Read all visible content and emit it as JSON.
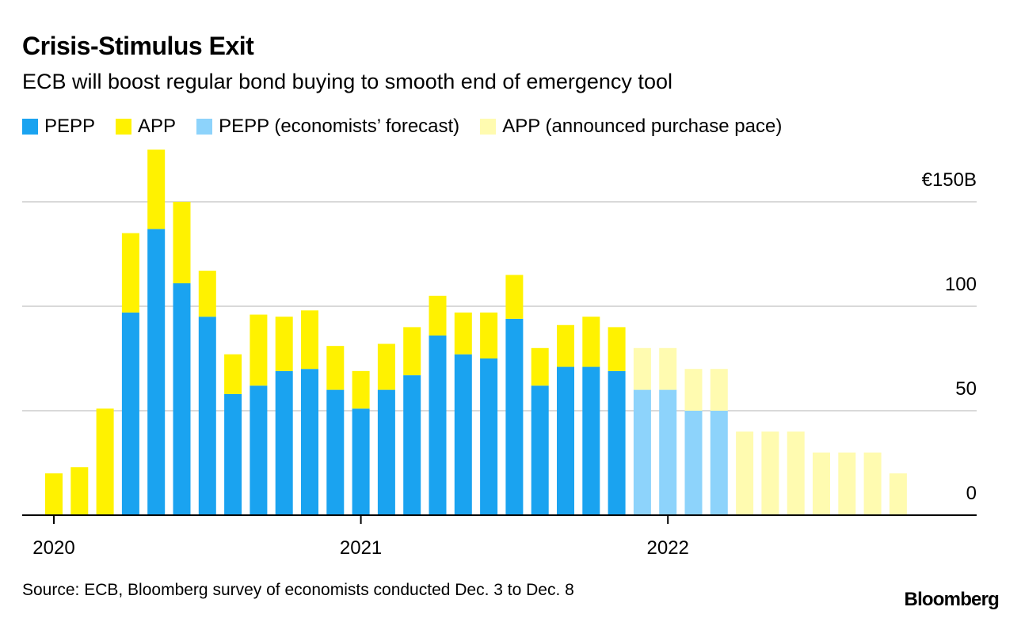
{
  "chart_data": {
    "type": "bar",
    "stacked": true,
    "title": "Crisis-Stimulus Exit",
    "subtitle": "ECB will boost regular bond buying to smooth end of emergency tool",
    "y_unit": "€B",
    "ylim": [
      0,
      150
    ],
    "y_ticks": [
      {
        "value": 0,
        "label": "0"
      },
      {
        "value": 50,
        "label": "50"
      },
      {
        "value": 100,
        "label": "100"
      },
      {
        "value": 150,
        "label": "€150B"
      }
    ],
    "x_ticks": [
      {
        "index": 0,
        "label": "2020"
      },
      {
        "index": 12,
        "label": "2021"
      },
      {
        "index": 24,
        "label": "2022"
      }
    ],
    "categories": [
      "Jan 2020",
      "Feb 2020",
      "Mar 2020",
      "Apr 2020",
      "May 2020",
      "Jun 2020",
      "Jul 2020",
      "Aug 2020",
      "Sep 2020",
      "Oct 2020",
      "Nov 2020",
      "Dec 2020",
      "Jan 2021",
      "Feb 2021",
      "Mar 2021",
      "Apr 2021",
      "May 2021",
      "Jun 2021",
      "Jul 2021",
      "Aug 2021",
      "Sep 2021",
      "Oct 2021",
      "Nov 2021",
      "Dec 2021",
      "Jan 2022",
      "Feb 2022",
      "Mar 2022",
      "Apr 2022",
      "May 2022",
      "Jun 2022",
      "Jul 2022",
      "Aug 2022",
      "Sep 2022",
      "Oct 2022",
      "Nov 2022"
    ],
    "series": [
      {
        "name": "PEPP",
        "color": "#1aa3f0",
        "values": [
          0,
          0,
          0,
          97,
          137,
          111,
          95,
          58,
          62,
          69,
          70,
          60,
          51,
          60,
          67,
          86,
          77,
          75,
          94,
          62,
          71,
          71,
          69,
          null,
          null,
          null,
          null,
          null,
          null,
          null,
          null,
          null,
          null,
          null,
          null
        ]
      },
      {
        "name": "APP",
        "color": "#fff200",
        "values": [
          20,
          23,
          51,
          38,
          38,
          39,
          22,
          19,
          34,
          26,
          28,
          21,
          18,
          22,
          23,
          19,
          20,
          22,
          21,
          18,
          20,
          24,
          21,
          null,
          null,
          null,
          null,
          null,
          null,
          null,
          null,
          null,
          null,
          null,
          null
        ]
      },
      {
        "name": "PEPP (economists’ forecast)",
        "color": "#8dd3fb",
        "values": [
          null,
          null,
          null,
          null,
          null,
          null,
          null,
          null,
          null,
          null,
          null,
          null,
          null,
          null,
          null,
          null,
          null,
          null,
          null,
          null,
          null,
          null,
          null,
          60,
          60,
          50,
          50,
          null,
          null,
          null,
          null,
          null,
          null,
          null,
          null
        ]
      },
      {
        "name": "APP (announced purchase pace)",
        "color": "#fffbb0",
        "values": [
          null,
          null,
          null,
          null,
          null,
          null,
          null,
          null,
          null,
          null,
          null,
          null,
          null,
          null,
          null,
          null,
          null,
          null,
          null,
          null,
          null,
          null,
          null,
          20,
          20,
          20,
          20,
          40,
          40,
          40,
          30,
          30,
          30,
          20,
          null
        ]
      }
    ]
  },
  "footer": {
    "source": "Source: ECB, Bloomberg survey of economists conducted Dec. 3 to Dec. 8",
    "brand": "Bloomberg"
  }
}
